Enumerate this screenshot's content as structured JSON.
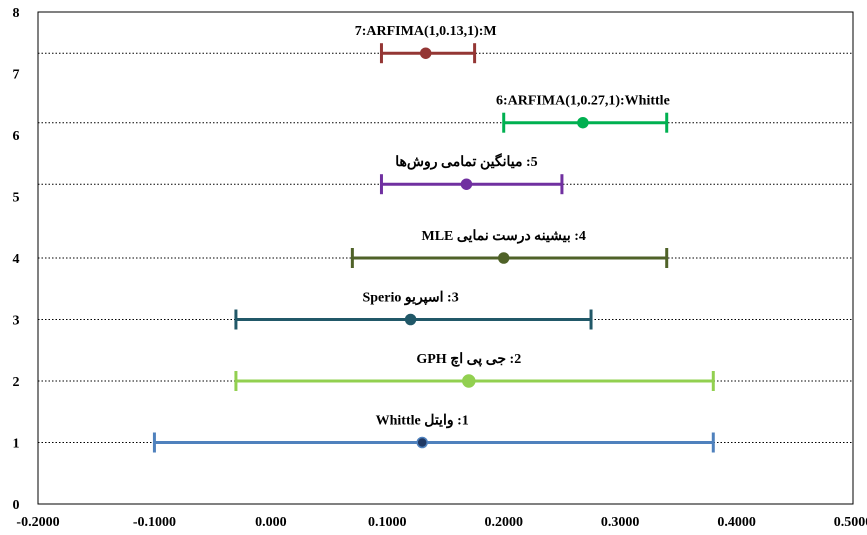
{
  "chart_data": {
    "type": "interval",
    "xlim": [
      -0.2,
      0.5
    ],
    "ylim": [
      0,
      8
    ],
    "xticks": [
      "-0.2000",
      "-0.1000",
      "0.000",
      "0.1000",
      "0.2000",
      "0.3000",
      "0.4000",
      "0.5000"
    ],
    "yticks": [
      "0",
      "1",
      "2",
      "3",
      "4",
      "5",
      "6",
      "7",
      "8"
    ],
    "grid": "horizontal dotted at each interval",
    "legend": "none",
    "series": [
      {
        "label": "1: وایتل Whittle",
        "y": 1.0,
        "low": -0.1,
        "estimate": 0.13,
        "high": 0.38,
        "color": "#4f81bd",
        "marker_color": "#1f3864"
      },
      {
        "label": "2: جی پی اچ GPH",
        "y": 2.0,
        "low": -0.03,
        "estimate": 0.17,
        "high": 0.38,
        "color": "#92d050",
        "marker_color": "#92d050"
      },
      {
        "label": "3: اسپریو Sperio",
        "y": 3.0,
        "low": -0.03,
        "estimate": 0.12,
        "high": 0.275,
        "color": "#215868",
        "marker_color": "#215868"
      },
      {
        "label": "4: بیشینه درست نمایی MLE",
        "y": 4.0,
        "low": 0.07,
        "estimate": 0.2,
        "high": 0.34,
        "color": "#4f6228",
        "marker_color": "#4f6228"
      },
      {
        "label": "5: میانگین تمامی روش‌ها",
        "y": 5.2,
        "low": 0.095,
        "estimate": 0.168,
        "high": 0.25,
        "color": "#7030a0",
        "marker_color": "#7030a0"
      },
      {
        "label": "6:ARFIMA(1,0.27,1):Whittle",
        "y": 6.2,
        "low": 0.2,
        "estimate": 0.268,
        "high": 0.34,
        "color": "#00b050",
        "marker_color": "#00b050"
      },
      {
        "label": "7:ARFIMA(1,0.13,1):M",
        "y": 7.33,
        "low": 0.095,
        "estimate": 0.133,
        "high": 0.175,
        "color": "#943634",
        "marker_color": "#943634"
      }
    ]
  }
}
